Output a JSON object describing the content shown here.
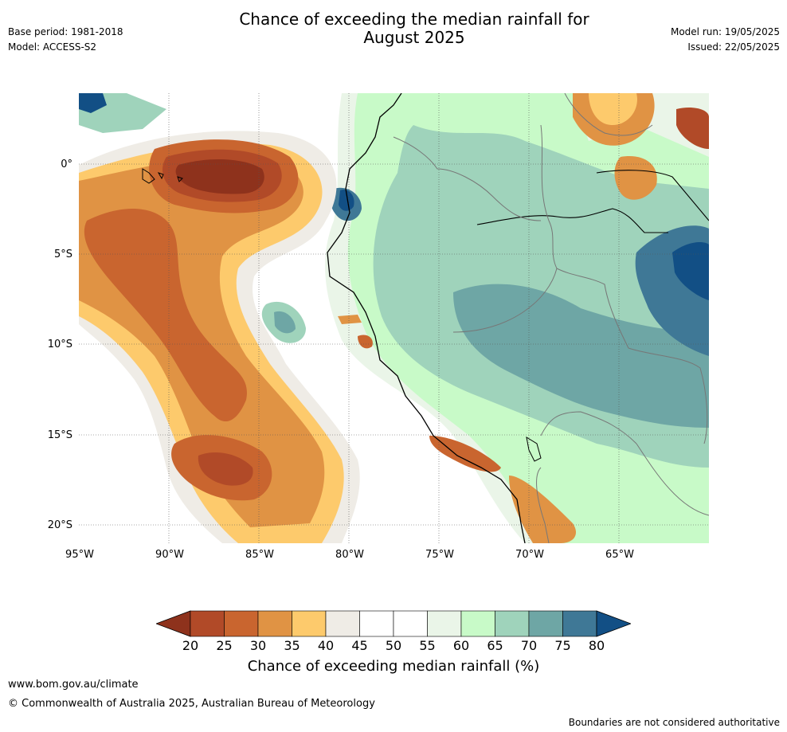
{
  "header": {
    "title_line1": "Chance of exceeding the median rainfall for",
    "title_line2": "August 2025",
    "base_period": "Base period: 1981-2018",
    "model": "Model: ACCESS-S2",
    "model_run": "Model run: 19/05/2025",
    "issued": "Issued: 22/05/2025"
  },
  "map": {
    "lat_labels": [
      "0°",
      "5°S",
      "10°S",
      "15°S",
      "20°S"
    ],
    "lon_labels": [
      "95°W",
      "90°W",
      "85°W",
      "80°W",
      "75°W",
      "70°W",
      "65°W"
    ],
    "palette": {
      "20": "#8e321c",
      "25": "#b14a28",
      "30": "#c9652f",
      "35": "#e09344",
      "40": "#fdca6c",
      "45": "#efece6",
      "50": "#ffffff",
      "55": "#ffffff",
      "60": "#eaf5e8",
      "65": "#c8fac8",
      "70": "#9fd3bb",
      "75": "#6ea6a5",
      "80": "#3f7896",
      "85": "#124f85"
    }
  },
  "colorbar": {
    "ticks": [
      "20",
      "25",
      "30",
      "35",
      "40",
      "45",
      "50",
      "55",
      "60",
      "65",
      "70",
      "75",
      "80"
    ],
    "colors": [
      "#b14a28",
      "#c9652f",
      "#e09344",
      "#fdca6c",
      "#efece6",
      "#ffffff",
      "#ffffff",
      "#eaf5e8",
      "#c8fac8",
      "#9fd3bb",
      "#6ea6a5",
      "#3f7896"
    ],
    "low_color": "#8e321c",
    "high_color": "#124f85",
    "label": "Chance of exceeding median rainfall (%)"
  },
  "footer": {
    "url": "www.bom.gov.au/climate",
    "copyright": "© Commonwealth of Australia 2025, Australian Bureau of Meteorology",
    "disclaimer": "Boundaries are not considered authoritative"
  }
}
